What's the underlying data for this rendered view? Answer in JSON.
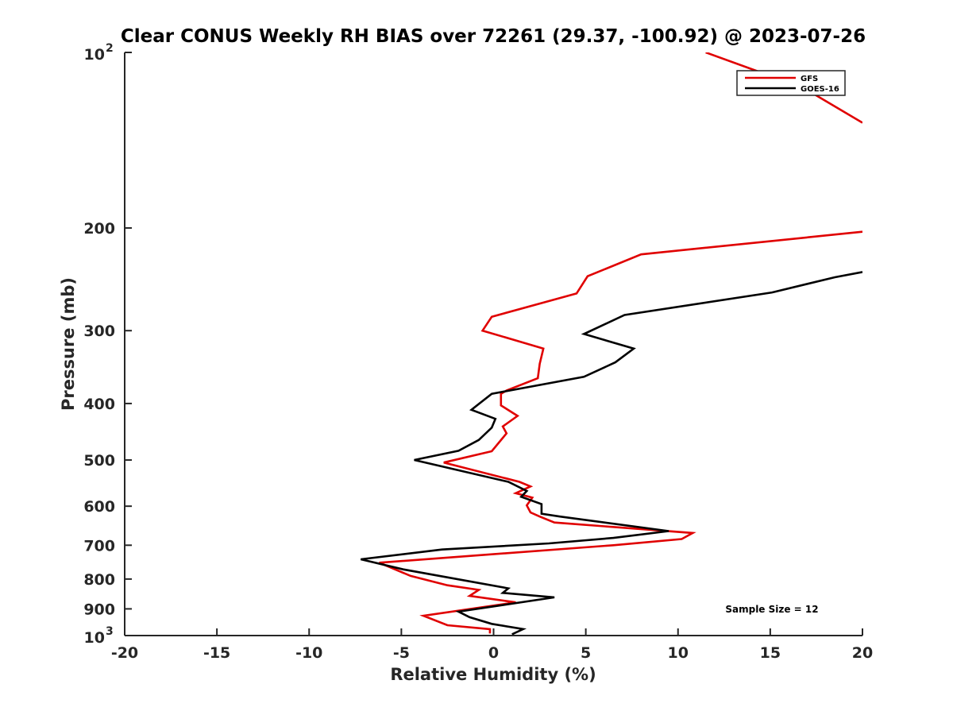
{
  "chart_data": {
    "type": "line",
    "title": "Clear CONUS Weekly RH BIAS over 72261 (29.37, -100.92) @ 2023-07-26",
    "xlabel": "Relative Humidity (%)",
    "ylabel": "Pressure (mb)",
    "xlim": [
      -20,
      20
    ],
    "ylim": [
      100,
      1000
    ],
    "y_scale": "log",
    "y_reversed": true,
    "grid": false,
    "legend_position": "top-right",
    "x_ticks": [
      -20,
      -15,
      -10,
      -5,
      0,
      5,
      10,
      15,
      20
    ],
    "x_tick_labels": [
      "-20",
      "-15",
      "-10",
      "-5",
      "0",
      "5",
      "10",
      "15",
      "20"
    ],
    "y_ticks": [
      200,
      300,
      400,
      500,
      600,
      700,
      800,
      900
    ],
    "y_tick_labels": [
      "200",
      "300",
      "400",
      "500",
      "600",
      "700",
      "800",
      "900"
    ],
    "y_end_labels": [
      {
        "value": 100,
        "base": "10",
        "exp": "2"
      },
      {
        "value": 1000,
        "base": "10",
        "exp": "3"
      }
    ],
    "annotation": "Sample Size = 12",
    "series": [
      {
        "name": "GFS",
        "color": "#e00000",
        "points": [
          [
            -0.2,
            992
          ],
          [
            -0.2,
            975
          ],
          [
            -2.5,
            960
          ],
          [
            -3.8,
            925
          ],
          [
            1.2,
            877
          ],
          [
            -1.3,
            855
          ],
          [
            -0.8,
            835
          ],
          [
            -2.5,
            820
          ],
          [
            -4.5,
            790
          ],
          [
            -6.2,
            750
          ],
          [
            6.5,
            700
          ],
          [
            10.2,
            683
          ],
          [
            10.8,
            667
          ],
          [
            3.3,
            640
          ],
          [
            2.5,
            625
          ],
          [
            2.0,
            615
          ],
          [
            1.8,
            598
          ],
          [
            2.1,
            580
          ],
          [
            1.2,
            570
          ],
          [
            2.0,
            555
          ],
          [
            1.4,
            545
          ],
          [
            -2.7,
            505
          ],
          [
            -0.1,
            483
          ],
          [
            0.7,
            450
          ],
          [
            0.5,
            438
          ],
          [
            1.3,
            420
          ],
          [
            0.4,
            403
          ],
          [
            0.4,
            385
          ],
          [
            0.7,
            380
          ],
          [
            2.4,
            362
          ],
          [
            2.5,
            342
          ],
          [
            2.7,
            322
          ],
          [
            -0.6,
            300
          ],
          [
            -0.1,
            284
          ],
          [
            4.5,
            259
          ],
          [
            5.1,
            242
          ],
          [
            8.0,
            222
          ],
          [
            20,
            203
          ]
        ]
      },
      {
        "name": "GOES-16",
        "color": "#000000",
        "points": [
          [
            1.0,
            995
          ],
          [
            1.6,
            975
          ],
          [
            -0.1,
            955
          ],
          [
            -1.3,
            930
          ],
          [
            -1.9,
            910
          ],
          [
            3.3,
            860
          ],
          [
            0.5,
            845
          ],
          [
            0.8,
            830
          ],
          [
            -4.9,
            770
          ],
          [
            -7.2,
            740
          ],
          [
            -2.8,
            712
          ],
          [
            3.0,
            695
          ],
          [
            6.5,
            680
          ],
          [
            9.5,
            662
          ],
          [
            3.6,
            625
          ],
          [
            2.6,
            618
          ],
          [
            2.6,
            595
          ],
          [
            1.5,
            578
          ],
          [
            1.8,
            565
          ],
          [
            0.8,
            545
          ],
          [
            -4.3,
            500
          ],
          [
            -1.9,
            482
          ],
          [
            -0.8,
            462
          ],
          [
            -0.1,
            440
          ],
          [
            0.1,
            425
          ],
          [
            -1.2,
            410
          ],
          [
            -0.1,
            385
          ],
          [
            4.9,
            360
          ],
          [
            6.6,
            340
          ],
          [
            7.6,
            322
          ],
          [
            4.9,
            304
          ],
          [
            7.1,
            282
          ],
          [
            15.1,
            258
          ],
          [
            18.5,
            243
          ],
          [
            20,
            238
          ]
        ]
      },
      {
        "name": "",
        "color": "#e00000",
        "points": [
          [
            11.5,
            100
          ],
          [
            16.8,
            115
          ],
          [
            20,
            132
          ]
        ]
      }
    ]
  }
}
